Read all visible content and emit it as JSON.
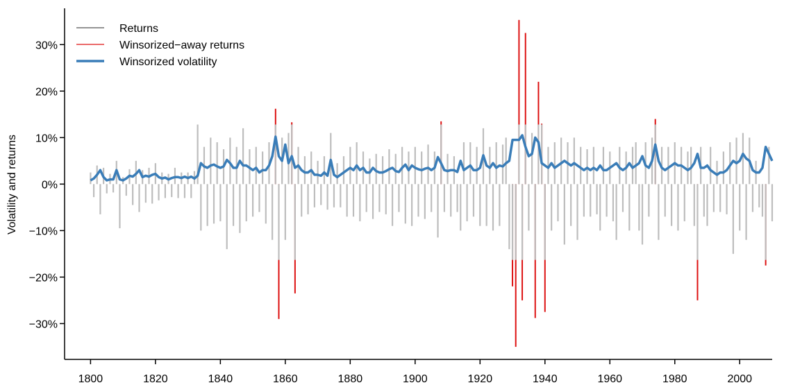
{
  "chart_data": {
    "type": "line",
    "y_label": "Volatility and returns",
    "xlim": [
      1792,
      2010
    ],
    "ylim": [
      -37.7,
      37.8
    ],
    "xticks": [
      1800,
      1820,
      1840,
      1860,
      1880,
      1900,
      1920,
      1940,
      1960,
      1980,
      2000
    ],
    "yticks": [
      {
        "value": -30,
        "label": "−30%"
      },
      {
        "value": -20,
        "label": "−20%"
      },
      {
        "value": -10,
        "label": "−10%"
      },
      {
        "value": 0,
        "label": "0%"
      },
      {
        "value": 10,
        "label": "10%"
      },
      {
        "value": 20,
        "label": "20%"
      },
      {
        "value": 30,
        "label": "30%"
      }
    ],
    "legend": "top-left",
    "x": [
      1800,
      1801,
      1802,
      1803,
      1804,
      1805,
      1806,
      1807,
      1808,
      1809,
      1810,
      1811,
      1812,
      1813,
      1814,
      1815,
      1816,
      1817,
      1818,
      1819,
      1820,
      1821,
      1822,
      1823,
      1824,
      1825,
      1826,
      1827,
      1828,
      1829,
      1830,
      1831,
      1832,
      1833,
      1834,
      1835,
      1836,
      1837,
      1838,
      1839,
      1840,
      1841,
      1842,
      1843,
      1844,
      1845,
      1846,
      1847,
      1848,
      1849,
      1850,
      1851,
      1852,
      1853,
      1854,
      1855,
      1856,
      1857,
      1858,
      1859,
      1860,
      1861,
      1862,
      1863,
      1864,
      1865,
      1866,
      1867,
      1868,
      1869,
      1870,
      1871,
      1872,
      1873,
      1874,
      1875,
      1876,
      1877,
      1878,
      1879,
      1880,
      1881,
      1882,
      1883,
      1884,
      1885,
      1886,
      1887,
      1888,
      1889,
      1890,
      1891,
      1892,
      1893,
      1894,
      1895,
      1896,
      1897,
      1898,
      1899,
      1900,
      1901,
      1902,
      1903,
      1904,
      1905,
      1906,
      1907,
      1908,
      1909,
      1910,
      1911,
      1912,
      1913,
      1914,
      1915,
      1916,
      1917,
      1918,
      1919,
      1920,
      1921,
      1922,
      1923,
      1924,
      1925,
      1926,
      1927,
      1928,
      1929,
      1930,
      1931,
      1932,
      1933,
      1934,
      1935,
      1936,
      1937,
      1938,
      1939,
      1940,
      1941,
      1942,
      1943,
      1944,
      1945,
      1946,
      1947,
      1948,
      1949,
      1950,
      1951,
      1952,
      1953,
      1954,
      1955,
      1956,
      1957,
      1958,
      1959,
      1960,
      1961,
      1962,
      1963,
      1964,
      1965,
      1966,
      1967,
      1968,
      1969,
      1970,
      1971,
      1972,
      1973,
      1974,
      1975,
      1976,
      1977,
      1978,
      1979,
      1980,
      1981,
      1982,
      1983,
      1984,
      1985,
      1986,
      1987,
      1988,
      1989,
      1990,
      1991,
      1992,
      1993,
      1994,
      1995,
      1996,
      1997,
      1998,
      1999,
      2000,
      2001,
      2002,
      2003,
      2004,
      2005,
      2006,
      2007,
      2008,
      2009,
      2010
    ],
    "series": [
      {
        "name": "Returns",
        "style": "spikes",
        "color": "#bdbdbd",
        "legend_color": "#555555",
        "values": [
          2.5,
          -2.8,
          4.0,
          -6.5,
          3.5,
          -2.0,
          2.2,
          -1.8,
          5.0,
          -9.5,
          1.5,
          -2.5,
          3.2,
          -4.5,
          5.0,
          -6.0,
          3.0,
          -4.0,
          3.5,
          -4.2,
          4.5,
          -3.5,
          2.5,
          -3.0,
          2.2,
          -2.8,
          3.5,
          -3.0,
          2.5,
          -3.0,
          2.5,
          -3.0,
          2.8,
          12.8,
          -10.0,
          8.0,
          -9.0,
          10.0,
          -8.5,
          9.0,
          -8.0,
          7.5,
          -14.0,
          10.0,
          -9.0,
          8.0,
          -10.5,
          12.0,
          -8.0,
          7.5,
          -7.0,
          8.0,
          -6.0,
          7.0,
          -8.5,
          9.0,
          -12.0,
          12.8,
          -16.3,
          10.0,
          -12.0,
          11.0,
          12.8,
          -16.3,
          8.0,
          -7.0,
          6.0,
          -6.5,
          7.0,
          -5.0,
          5.0,
          -4.5,
          6.0,
          -5.5,
          11.0,
          -5.0,
          4.5,
          -5.0,
          6.0,
          -7.0,
          8.0,
          -7.0,
          9.0,
          -8.0,
          7.0,
          -6.0,
          5.5,
          -7.5,
          6.5,
          -6.0,
          6.0,
          -6.5,
          7.5,
          -9.0,
          6.5,
          -6.0,
          8.0,
          -8.5,
          7.0,
          -9.0,
          8.0,
          -7.0,
          7.0,
          -7.5,
          8.5,
          -6.0,
          7.0,
          -11.5,
          12.8,
          -6.0,
          6.5,
          -7.0,
          6.0,
          -6.0,
          -10.0,
          9.0,
          -8.0,
          9.0,
          -7.0,
          8.0,
          -9.0,
          12.0,
          -9.0,
          8.0,
          -10.0,
          9.0,
          -9.0,
          8.5,
          10.0,
          -14.0,
          -16.3,
          -16.3,
          12.8,
          -16.3,
          12.8,
          -10.0,
          11.0,
          -16.3,
          12.8,
          12.8,
          -16.3,
          8.0,
          -10.0,
          9.0,
          -8.0,
          10.0,
          -13.0,
          9.0,
          -9.0,
          10.0,
          -12.0,
          8.0,
          -7.0,
          7.5,
          -7.0,
          8.0,
          -6.5,
          -10.0,
          8.0,
          -7.0,
          7.0,
          -8.0,
          -12.0,
          8.0,
          -6.0,
          7.0,
          -10.0,
          8.0,
          9.0,
          -10.0,
          -13.0,
          9.0,
          -7.0,
          10.0,
          12.8,
          -12.0,
          8.0,
          -7.0,
          8.0,
          -9.0,
          9.0,
          -10.0,
          8.0,
          -8.0,
          7.0,
          8.0,
          -9.0,
          -16.3,
          8.0,
          -7.0,
          -9.0,
          8.0,
          -6.0,
          5.0,
          -6.0,
          7.0,
          -6.5,
          9.0,
          -15.0,
          10.0,
          -10.0,
          11.0,
          -12.0,
          10.0,
          -6.0,
          5.0,
          -5.0,
          -7.0,
          -16.3,
          8.0,
          -8.0
        ]
      },
      {
        "name": "Winsorized−away returns",
        "style": "spikes",
        "color": "#dd1111",
        "x": [
          1857,
          1858,
          1862,
          1863,
          1908,
          1930,
          1931,
          1932,
          1933,
          1934,
          1937,
          1938,
          1939,
          1940,
          1974,
          1987,
          2008
        ],
        "values": [
          16.2,
          -29,
          13.3,
          -23.5,
          13.5,
          -22,
          -35,
          35.3,
          -25,
          32.5,
          -28.8,
          22,
          13,
          -27.5,
          14,
          -25,
          -17.5
        ]
      },
      {
        "name": "Winsorized volatility",
        "style": "line",
        "color": "#3a7db8",
        "values": [
          0.8,
          1.2,
          2.0,
          3.0,
          1.5,
          0.8,
          1.0,
          1.0,
          3.0,
          1.0,
          0.8,
          1.2,
          1.8,
          1.6,
          2.2,
          3.0,
          1.5,
          1.8,
          1.6,
          2.0,
          2.2,
          1.5,
          1.2,
          1.4,
          1.0,
          1.3,
          1.5,
          1.5,
          1.3,
          1.6,
          1.3,
          1.6,
          1.2,
          1.8,
          4.5,
          3.8,
          3.5,
          4.0,
          4.2,
          3.8,
          3.5,
          3.8,
          5.2,
          4.5,
          3.5,
          3.5,
          5.0,
          4.0,
          4.0,
          3.5,
          3.0,
          3.5,
          2.5,
          3.0,
          3.0,
          4.0,
          6.0,
          10.2,
          6.0,
          5.0,
          8.5,
          4.5,
          6.0,
          3.5,
          4.0,
          3.0,
          2.5,
          2.5,
          3.0,
          2.0,
          2.0,
          1.8,
          2.5,
          1.8,
          5.2,
          2.0,
          1.5,
          2.0,
          2.5,
          3.0,
          3.5,
          3.0,
          4.0,
          3.0,
          3.5,
          2.5,
          2.5,
          3.5,
          2.8,
          2.5,
          2.5,
          2.8,
          3.2,
          3.5,
          2.8,
          2.6,
          3.5,
          4.2,
          3.0,
          4.0,
          3.5,
          3.2,
          3.0,
          3.3,
          3.5,
          3.0,
          3.5,
          5.8,
          4.5,
          3.0,
          2.8,
          3.0,
          3.0,
          2.6,
          5.0,
          3.0,
          3.5,
          4.0,
          3.0,
          3.0,
          3.5,
          6.2,
          4.0,
          3.5,
          4.5,
          3.5,
          4.0,
          3.8,
          4.5,
          5.0,
          9.5,
          9.5,
          9.5,
          10.5,
          8.0,
          6.0,
          6.5,
          10.0,
          9.0,
          4.5,
          4.0,
          3.5,
          4.5,
          3.5,
          4.0,
          4.5,
          5.0,
          4.5,
          4.0,
          4.5,
          4.0,
          3.5,
          3.0,
          3.5,
          3.0,
          3.5,
          3.0,
          4.0,
          3.0,
          3.0,
          3.5,
          4.0,
          4.5,
          3.5,
          3.0,
          3.5,
          4.5,
          3.5,
          4.0,
          4.5,
          6.0,
          4.0,
          3.5,
          5.0,
          8.5,
          5.0,
          3.5,
          3.0,
          3.5,
          4.0,
          4.5,
          4.0,
          4.0,
          3.5,
          3.0,
          3.5,
          4.5,
          6.5,
          3.5,
          3.5,
          4.0,
          3.0,
          2.5,
          2.0,
          2.5,
          2.5,
          3.0,
          4.0,
          5.0,
          4.5,
          5.0,
          6.5,
          5.5,
          5.0,
          3.0,
          2.5,
          2.5,
          3.5,
          8.0,
          6.5,
          5.0
        ]
      }
    ]
  }
}
